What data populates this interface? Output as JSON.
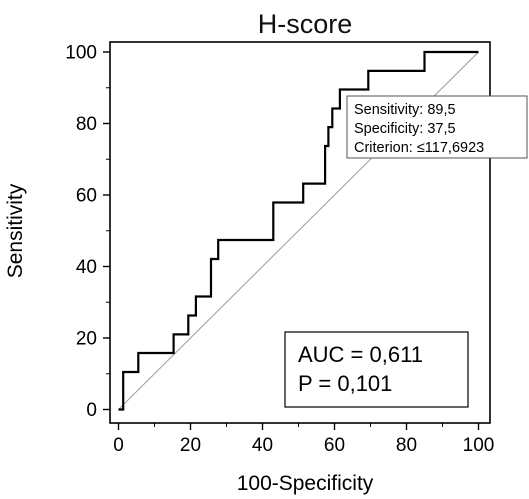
{
  "chart_data": {
    "type": "line",
    "title": "H-score",
    "xlabel": "100-Specificity",
    "ylabel": "Sensitivity",
    "xlim": [
      0,
      100
    ],
    "ylim": [
      0,
      100
    ],
    "xticks": [
      "0",
      "20",
      "40",
      "60",
      "80",
      "100"
    ],
    "yticks": [
      "0",
      "20",
      "40",
      "60",
      "80",
      "100"
    ],
    "grid": false,
    "series": [
      {
        "x": [
          0,
          0,
          1.3,
          1.3,
          5.5,
          5.5,
          15.3,
          15.3,
          19.4,
          19.4,
          21.5,
          21.5,
          25.7,
          25.7,
          27.7,
          27.7,
          28.5,
          28.5,
          43,
          43,
          51.3,
          51.3,
          57.4,
          57.4,
          58.3,
          58.3,
          59.4,
          59.4,
          61.5,
          61.5,
          69.4,
          69.4,
          85,
          85,
          100
        ],
        "y": [
          0,
          0,
          0,
          10.5,
          10.5,
          15.8,
          15.8,
          21,
          21,
          26.3,
          26.3,
          31.6,
          31.6,
          42.1,
          42.1,
          47.4,
          47.4,
          47.4,
          47.4,
          57.9,
          57.9,
          63.2,
          63.2,
          73.7,
          73.7,
          79,
          79,
          84.2,
          84.2,
          89.5,
          89.5,
          94.7,
          94.7,
          100,
          100
        ]
      },
      {
        "x": [
          0,
          100
        ],
        "y": [
          0,
          100
        ]
      }
    ],
    "annotation": {
      "lines": [
        "Sensitivity: 89,5",
        "Specificity: 37,5",
        "Criterion: ≤117,6923"
      ]
    },
    "stats": {
      "lines": [
        "AUC = 0,611",
        "P = 0,101"
      ]
    }
  }
}
